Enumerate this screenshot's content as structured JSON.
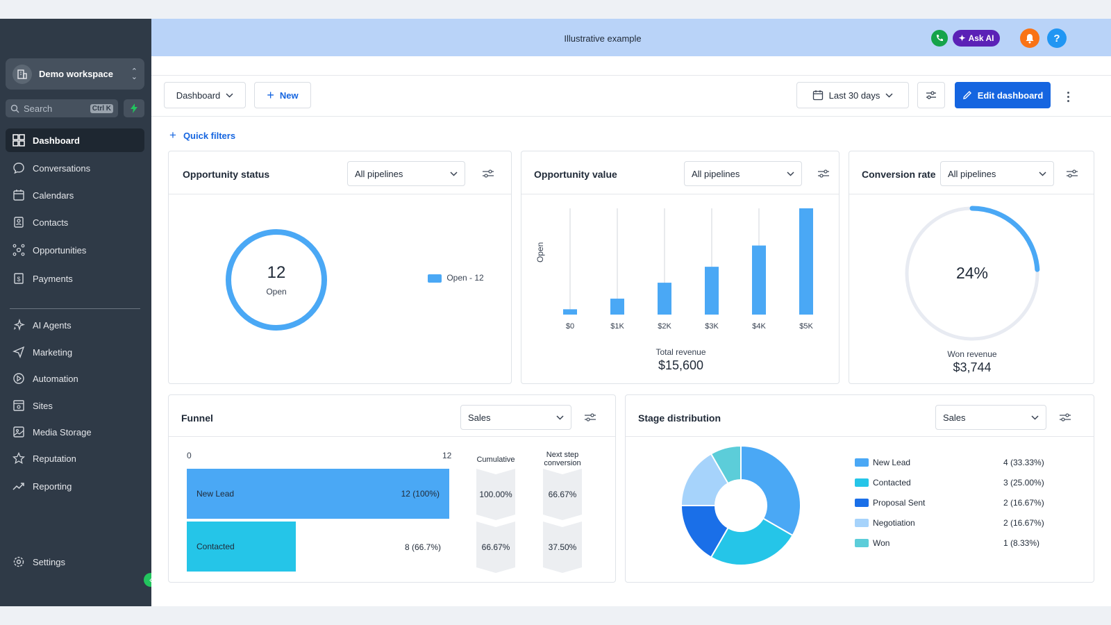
{
  "sidebar": {
    "workspace": "Demo workspace",
    "search_placeholder": "Search",
    "search_shortcut": "Ctrl K",
    "items": [
      {
        "label": "Dashboard",
        "icon": "dashboard-icon",
        "active": true
      },
      {
        "label": "Conversations",
        "icon": "chat-icon"
      },
      {
        "label": "Calendars",
        "icon": "calendar-icon"
      },
      {
        "label": "Contacts",
        "icon": "contacts-icon"
      },
      {
        "label": "Opportunities",
        "icon": "opportunities-icon"
      },
      {
        "label": "Payments",
        "icon": "payments-icon"
      },
      {
        "label": "AI Agents",
        "icon": "sparkle-icon"
      },
      {
        "label": "Marketing",
        "icon": "send-icon"
      },
      {
        "label": "Automation",
        "icon": "automation-icon"
      },
      {
        "label": "Sites",
        "icon": "sites-icon"
      },
      {
        "label": "Media Storage",
        "icon": "image-icon"
      },
      {
        "label": "Reputation",
        "icon": "star-icon"
      },
      {
        "label": "Reporting",
        "icon": "trend-icon"
      }
    ],
    "settings": "Settings"
  },
  "banner": {
    "title": "Illustrative example",
    "ask_ai": "Ask AI",
    "help": "?"
  },
  "toolbar": {
    "dashboard": "Dashboard",
    "new": "New",
    "date_range": "Last 30 days",
    "edit": "Edit dashboard",
    "quick_filters": "Quick filters"
  },
  "cards": {
    "status": {
      "title": "Opportunity status",
      "filter": "All pipelines",
      "count": "12",
      "count_label": "Open",
      "legend": "Open - 12"
    },
    "value": {
      "title": "Opportunity value",
      "filter": "All pipelines",
      "ylabel": "Open",
      "total_label": "Total revenue",
      "total": "$15,600"
    },
    "conversion": {
      "title": "Conversion rate",
      "filter": "All pipelines",
      "rate": "24%",
      "rate_value": 0.24,
      "won_label": "Won revenue",
      "won": "$3,744"
    },
    "funnel": {
      "title": "Funnel",
      "filter": "Sales",
      "axis_min": "0",
      "axis_max": "12",
      "cumulative_label": "Cumulative",
      "next_step_label": "Next step conversion",
      "rows": [
        {
          "label": "New Lead",
          "value": "12 (100%)",
          "count": 12,
          "cumulative": "100.00%",
          "next": "66.67%"
        },
        {
          "label": "Contacted",
          "value": "8 (66.7%)",
          "count": 8,
          "cumulative": "66.67%",
          "next": "37.50%"
        }
      ]
    },
    "stage": {
      "title": "Stage distribution",
      "filter": "Sales"
    }
  },
  "colors": {
    "accent": "#1565e0",
    "chart_blue": "#4aa8f5",
    "sidebar": "#2f3a47",
    "banner": "#b9d3f8"
  },
  "chart_data": [
    {
      "type": "bar",
      "categories": [
        "$0",
        "$1K",
        "$2K",
        "$3K",
        "$4K",
        "$5K"
      ],
      "values": [
        1,
        3,
        6,
        9,
        13,
        20
      ],
      "ylabel": "Open",
      "xlabel": ""
    },
    {
      "type": "pie",
      "labels": [
        "New Lead",
        "Contacted",
        "Proposal Sent",
        "Negotiation",
        "Won"
      ],
      "values": [
        4,
        3,
        2,
        2,
        1
      ],
      "display": [
        "4 (33.33%)",
        "3 (25.00%)",
        "2 (16.67%)",
        "2 (16.67%)",
        "1 (8.33%)"
      ],
      "colors": [
        "#4aa8f5",
        "#25c5e8",
        "#1a6fe8",
        "#a6d3fb",
        "#5ccdd9"
      ]
    }
  ]
}
